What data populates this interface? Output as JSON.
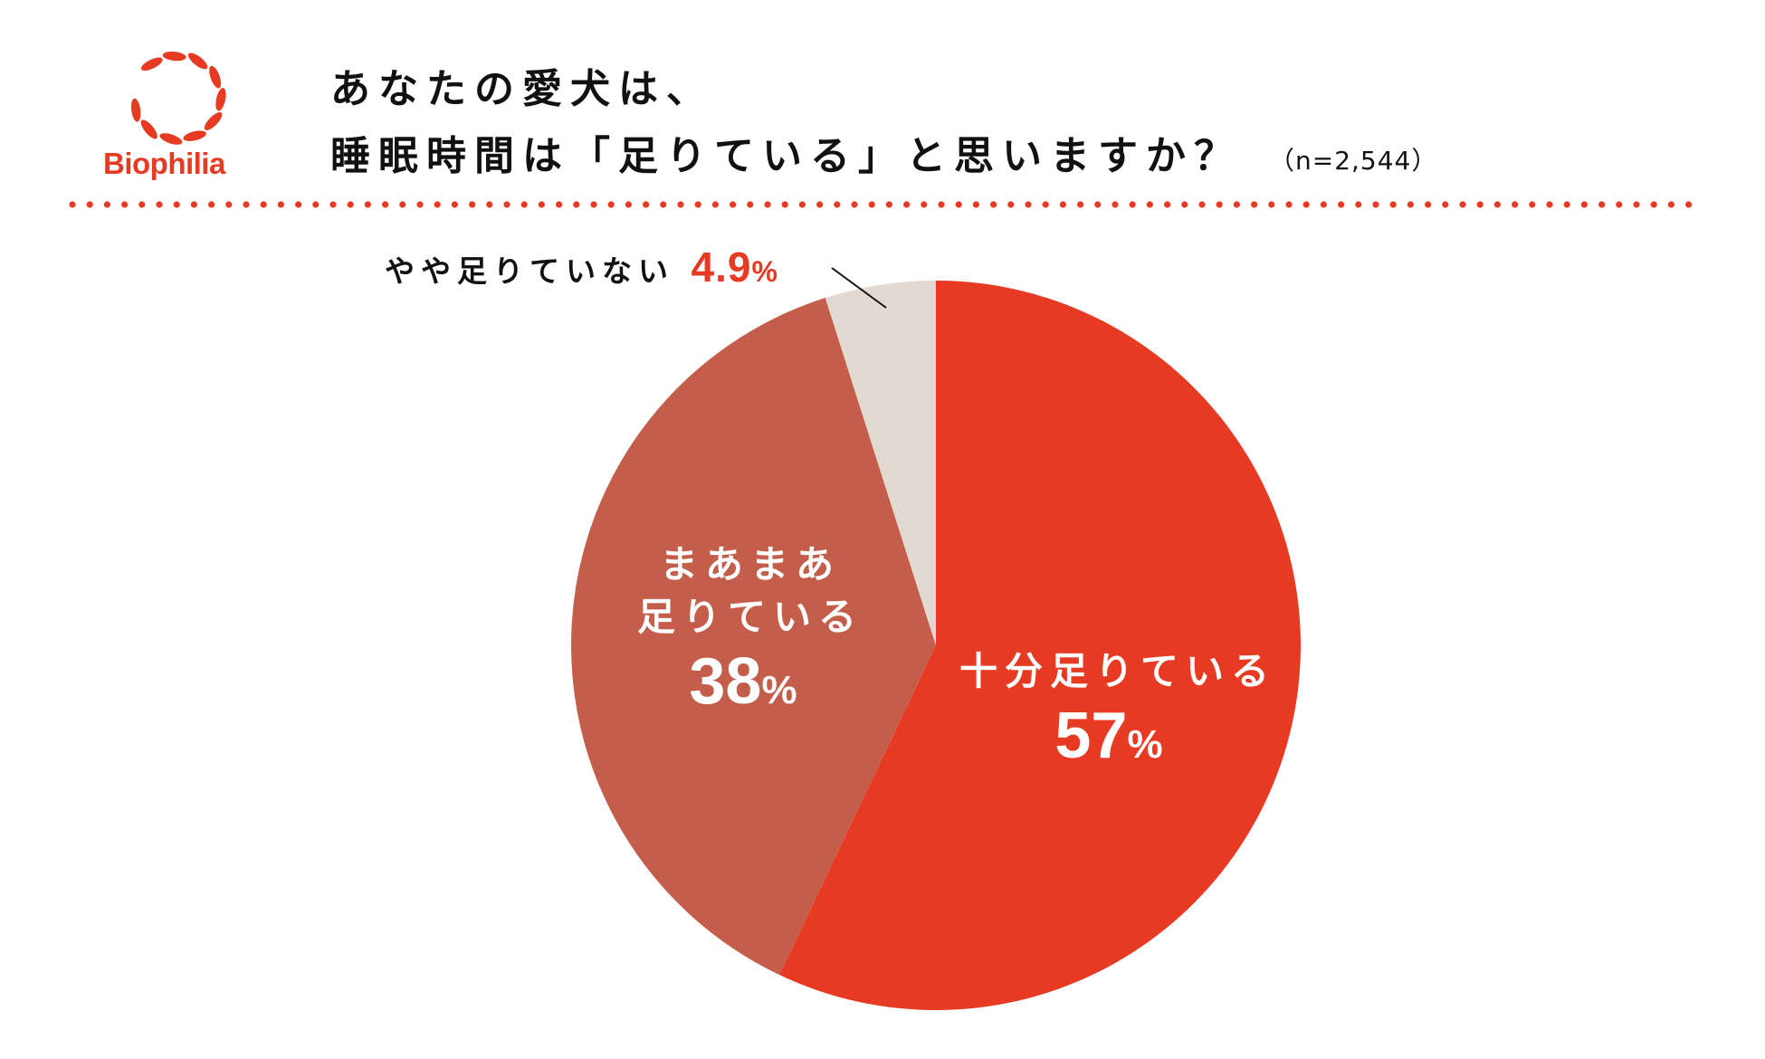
{
  "logo": {
    "brand": "Biophilia",
    "color": "#e63a22"
  },
  "header": {
    "title_line1": "あなたの愛犬は、",
    "title_line2": "睡眠時間は「足りている」と思いますか？",
    "sample": "（n=2,544）"
  },
  "chart_data": {
    "type": "pie",
    "title": "あなたの愛犬は、睡眠時間は「足りている」と思いますか？",
    "start": "top",
    "direction": "clockwise",
    "slices": [
      {
        "label": "十分足りている",
        "value": 57,
        "value_label": "57",
        "color": "#e63a22"
      },
      {
        "label_line1": "まあまあ",
        "label_line2": "足りている",
        "value": 38,
        "value_label": "38",
        "color": "#c45e4a"
      },
      {
        "label": "やや足りていない",
        "value": 4.9,
        "value_label": "4.9",
        "color": "#e2d9d1"
      }
    ],
    "percent_sign": "%"
  }
}
